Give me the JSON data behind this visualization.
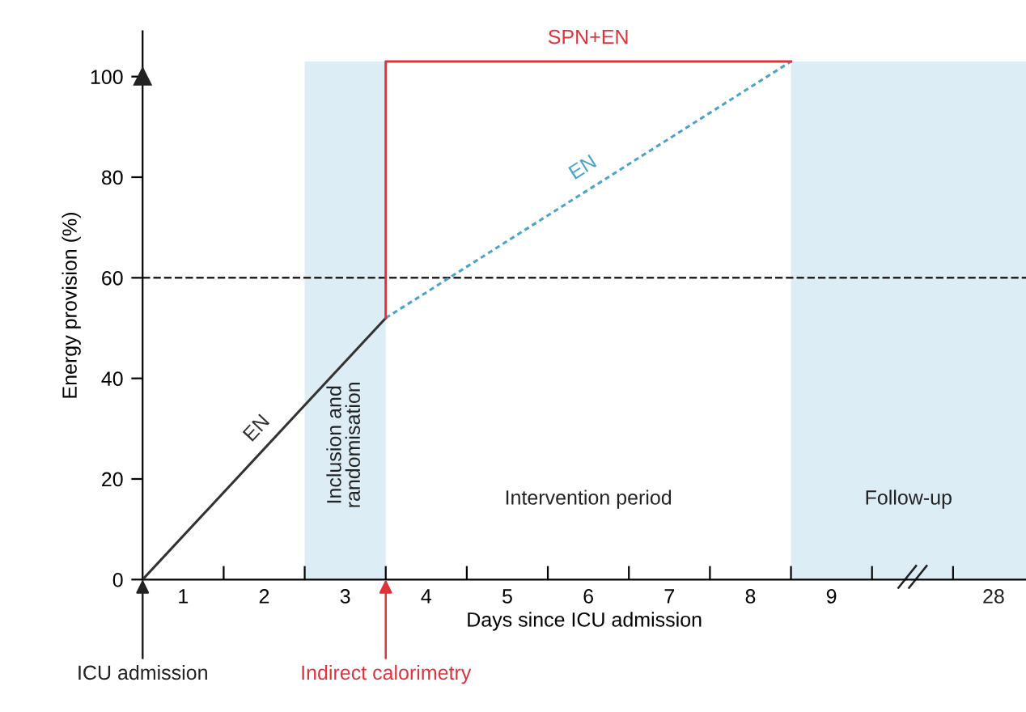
{
  "chart_data": {
    "type": "line",
    "xlabel": "Days since ICU admission",
    "ylabel": "Energy provision (%)",
    "xlim": [
      0,
      10.9
    ],
    "ylim": [
      0,
      109
    ],
    "xticks": [
      {
        "value": 1,
        "label": null
      },
      {
        "value": 2,
        "label": null
      },
      {
        "value": 3,
        "label": null
      },
      {
        "value": 4,
        "label": null
      },
      {
        "value": 5,
        "label": null
      },
      {
        "value": 6,
        "label": null
      },
      {
        "value": 7,
        "label": null
      },
      {
        "value": 8,
        "label": null
      },
      {
        "value": 9,
        "label": null
      },
      {
        "value": 10,
        "label": null
      },
      {
        "value": 0.5,
        "label": "1"
      },
      {
        "value": 1.5,
        "label": "2"
      },
      {
        "value": 2.5,
        "label": "3"
      },
      {
        "value": 3.5,
        "label": "4"
      },
      {
        "value": 4.5,
        "label": "5"
      },
      {
        "value": 5.5,
        "label": "6"
      },
      {
        "value": 6.5,
        "label": "7"
      },
      {
        "value": 7.5,
        "label": "8"
      },
      {
        "value": 8.5,
        "label": "9"
      }
    ],
    "yticks": [
      0,
      20,
      40,
      60,
      80,
      100
    ],
    "series": [
      {
        "name": "EN",
        "color": "#333333",
        "x": [
          0,
          3
        ],
        "values": [
          0,
          52
        ],
        "line_style": "solid"
      },
      {
        "name": "EN",
        "color": "#4aa3c8",
        "x": [
          3,
          8
        ],
        "values": [
          52,
          103
        ],
        "line_style": "dotted"
      },
      {
        "name": "SPN+EN",
        "color": "#e0323a",
        "x": [
          3,
          3,
          8
        ],
        "values": [
          52,
          103,
          103
        ],
        "line_style": "solid"
      }
    ],
    "ref_lines": [
      {
        "axis": "y",
        "value": 60,
        "color": "#222222",
        "line_style": "dashed"
      }
    ],
    "bands": [
      {
        "axis": "x",
        "from": 2,
        "to": 3,
        "label": "Inclusion and randomisation",
        "color": "#dcedf5"
      },
      {
        "axis": "x",
        "from": 8,
        "to": 10.9,
        "label": "Follow-up",
        "color": "#dcedf5"
      }
    ],
    "annotations": [
      {
        "text": "ICU admission",
        "x": 0,
        "y": 0
      },
      {
        "text": "Indirect calorimetry",
        "x": 3,
        "y": 0
      },
      "Intervention period",
      "28"
    ],
    "grid": false,
    "legend": false,
    "marker": "none"
  }
}
